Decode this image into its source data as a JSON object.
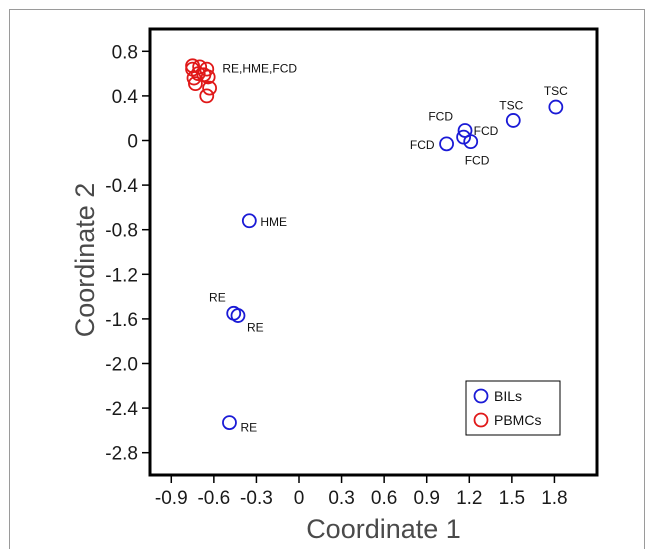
{
  "chart_data": {
    "type": "scatter",
    "xlabel": "Coordinate 1",
    "ylabel": "Coordinate 2",
    "xlim": [
      -1.05,
      2.1
    ],
    "ylim": [
      -3.0,
      1.0
    ],
    "xticks": [
      -0.9,
      -0.6,
      -0.3,
      0,
      0.3,
      0.6,
      0.9,
      1.2,
      1.5,
      1.8
    ],
    "xtick_labels": [
      "-0.9",
      "-0.6",
      "-0.3",
      "0",
      "0.3",
      "0.6",
      "0.9",
      "1.2",
      "1.5",
      "1.8"
    ],
    "yticks": [
      0.8,
      0.4,
      0,
      -0.4,
      -0.8,
      -1.2,
      -1.6,
      -2.0,
      -2.4,
      -2.8
    ],
    "ytick_labels": [
      "0.8",
      "0.4",
      "0",
      "-0.4",
      "-0.8",
      "-1.2",
      "-1.6",
      "-2.0",
      "-2.4",
      "-2.8"
    ],
    "grid": false,
    "legend_position": "bottom-right",
    "series": [
      {
        "name": "BILs",
        "color": "#1a1ad6",
        "points": [
          {
            "x": -0.35,
            "y": -0.72,
            "label": "HME"
          },
          {
            "x": -0.46,
            "y": -1.55,
            "label": "RE"
          },
          {
            "x": -0.43,
            "y": -1.57,
            "label": "RE"
          },
          {
            "x": -0.49,
            "y": -2.53,
            "label": "RE"
          },
          {
            "x": 1.04,
            "y": -0.03,
            "label": "FCD"
          },
          {
            "x": 1.17,
            "y": 0.09,
            "label": "FCD"
          },
          {
            "x": 1.16,
            "y": 0.03,
            "label": "FCD"
          },
          {
            "x": 1.21,
            "y": -0.01,
            "label": "FCD"
          },
          {
            "x": 1.51,
            "y": 0.18,
            "label": "TSC"
          },
          {
            "x": 1.81,
            "y": 0.3,
            "label": "TSC"
          }
        ]
      },
      {
        "name": "PBMCs",
        "color": "#e01818",
        "points": [
          {
            "x": -0.75,
            "y": 0.67
          },
          {
            "x": -0.7,
            "y": 0.66
          },
          {
            "x": -0.65,
            "y": 0.64
          },
          {
            "x": -0.71,
            "y": 0.6
          },
          {
            "x": -0.67,
            "y": 0.59
          },
          {
            "x": -0.74,
            "y": 0.56
          },
          {
            "x": -0.64,
            "y": 0.57
          },
          {
            "x": -0.73,
            "y": 0.51
          },
          {
            "x": -0.63,
            "y": 0.47
          },
          {
            "x": -0.65,
            "y": 0.4
          },
          {
            "x": -0.75,
            "y": 0.64
          }
        ]
      }
    ],
    "annotations": [
      {
        "text": "RE,HME,FCD",
        "x": -0.54,
        "y": 0.61
      }
    ]
  }
}
